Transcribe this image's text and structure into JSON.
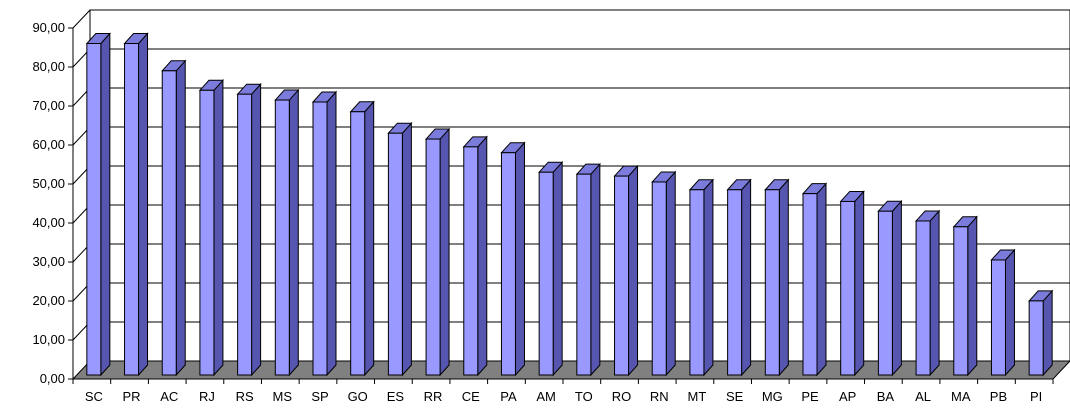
{
  "chart_data": {
    "type": "bar",
    "three_d": true,
    "grid": true,
    "legend": "none",
    "ylim": [
      0,
      90
    ],
    "y_ticks": [
      "0,00",
      "10,00",
      "20,00",
      "30,00",
      "40,00",
      "50,00",
      "60,00",
      "70,00",
      "80,00",
      "90,00"
    ],
    "categories": [
      "SC",
      "PR",
      "AC",
      "RJ",
      "RS",
      "MS",
      "SP",
      "GO",
      "ES",
      "RR",
      "CE",
      "PA",
      "AM",
      "TO",
      "RO",
      "RN",
      "MT",
      "SE",
      "MG",
      "PE",
      "AP",
      "BA",
      "AL",
      "MA",
      "PB",
      "PI"
    ],
    "series": [
      {
        "values": [
          85.0,
          85.0,
          78.0,
          73.0,
          72.0,
          70.5,
          70.0,
          67.5,
          62.0,
          60.5,
          58.5,
          57.0,
          52.0,
          51.5,
          51.0,
          49.5,
          47.5,
          47.5,
          47.5,
          46.5,
          44.5,
          42.0,
          39.5,
          38.0,
          29.5,
          19.0
        ]
      }
    ],
    "colors": {
      "bar_front": "#9999ff",
      "bar_top": "#7b7bdb",
      "bar_side": "#5656b0",
      "floor": "#808080",
      "grid": "#000000"
    }
  }
}
